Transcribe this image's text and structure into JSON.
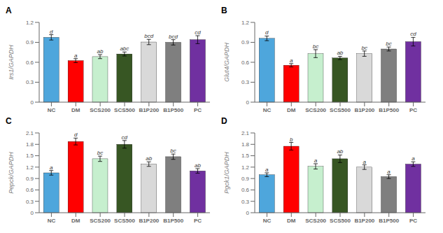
{
  "chart_data": [
    {
      "type": "bar",
      "title": "A",
      "ylabel": "Irs1/GAPDH",
      "categories": [
        "NC",
        "DM",
        "SCS200",
        "SCS500",
        "B1P200",
        "B1P500",
        "PC"
      ],
      "values": [
        0.975,
        0.625,
        0.685,
        0.725,
        0.905,
        0.9,
        0.94
      ],
      "errors": [
        0.04,
        0.03,
        0.03,
        0.03,
        0.04,
        0.04,
        0.06
      ],
      "annotations": [
        "d",
        "a",
        "ab",
        "abc",
        "bcd",
        "bcd",
        "cd"
      ],
      "colors": [
        "#4EA6DC",
        "#FF0000",
        "#C6EFCE",
        "#375623",
        "#D9D9D9",
        "#7F7F7F",
        "#7030A0"
      ],
      "ylim": [
        0,
        1.2
      ],
      "yticks": [
        0,
        0.3,
        0.6,
        0.9,
        1.2
      ]
    },
    {
      "type": "bar",
      "title": "B",
      "ylabel": "Glut4/GAPDH",
      "categories": [
        "NC",
        "DM",
        "SCS200",
        "SCS500",
        "B1P200",
        "B1P500",
        "PC"
      ],
      "values": [
        0.96,
        0.555,
        0.73,
        0.665,
        0.73,
        0.8,
        0.91
      ],
      "errors": [
        0.035,
        0.025,
        0.06,
        0.025,
        0.04,
        0.03,
        0.065
      ],
      "annotations": [
        "d",
        "a",
        "bc",
        "ab",
        "bc",
        "bc",
        "cd"
      ],
      "colors": [
        "#4EA6DC",
        "#FF0000",
        "#C6EFCE",
        "#375623",
        "#D9D9D9",
        "#7F7F7F",
        "#7030A0"
      ],
      "ylim": [
        0,
        1.2
      ],
      "yticks": [
        0,
        0.3,
        0.6,
        0.9,
        1.2
      ]
    },
    {
      "type": "bar",
      "title": "C",
      "ylabel": "Pepck/GAPDH",
      "categories": [
        "NC",
        "DM",
        "SCS200",
        "SCS500",
        "B1P200",
        "B1P500",
        "PC"
      ],
      "values": [
        1.05,
        1.875,
        1.42,
        1.8,
        1.28,
        1.475,
        1.1
      ],
      "errors": [
        0.06,
        0.09,
        0.07,
        0.1,
        0.06,
        0.07,
        0.06
      ],
      "annotations": [
        "a",
        "d",
        "bc",
        "cd",
        "ab",
        "bc",
        "ab"
      ],
      "colors": [
        "#4EA6DC",
        "#FF0000",
        "#C6EFCE",
        "#375623",
        "#D9D9D9",
        "#7F7F7F",
        "#7030A0"
      ],
      "ylim": [
        0,
        2.1
      ],
      "yticks": [
        0,
        0.3,
        0.6,
        0.9,
        1.2,
        1.5,
        1.8,
        2.1
      ]
    },
    {
      "type": "bar",
      "title": "D",
      "ylabel": "Pgck1/GAPDH",
      "categories": [
        "NC",
        "DM",
        "SCS200",
        "SCS500",
        "B1P200",
        "B1P500",
        "PC"
      ],
      "values": [
        1.0,
        1.75,
        1.22,
        1.42,
        1.2,
        0.95,
        1.28
      ],
      "errors": [
        0.05,
        0.1,
        0.07,
        0.1,
        0.06,
        0.05,
        0.06
      ],
      "annotations": [
        "a",
        "b",
        "a",
        "ab",
        "a",
        "a",
        "a"
      ],
      "colors": [
        "#4EA6DC",
        "#FF0000",
        "#C6EFCE",
        "#375623",
        "#D9D9D9",
        "#7F7F7F",
        "#7030A0"
      ],
      "ylim": [
        0,
        2.1
      ],
      "yticks": [
        0,
        0.3,
        0.6,
        0.9,
        1.2,
        1.5,
        1.8,
        2.1
      ]
    }
  ]
}
